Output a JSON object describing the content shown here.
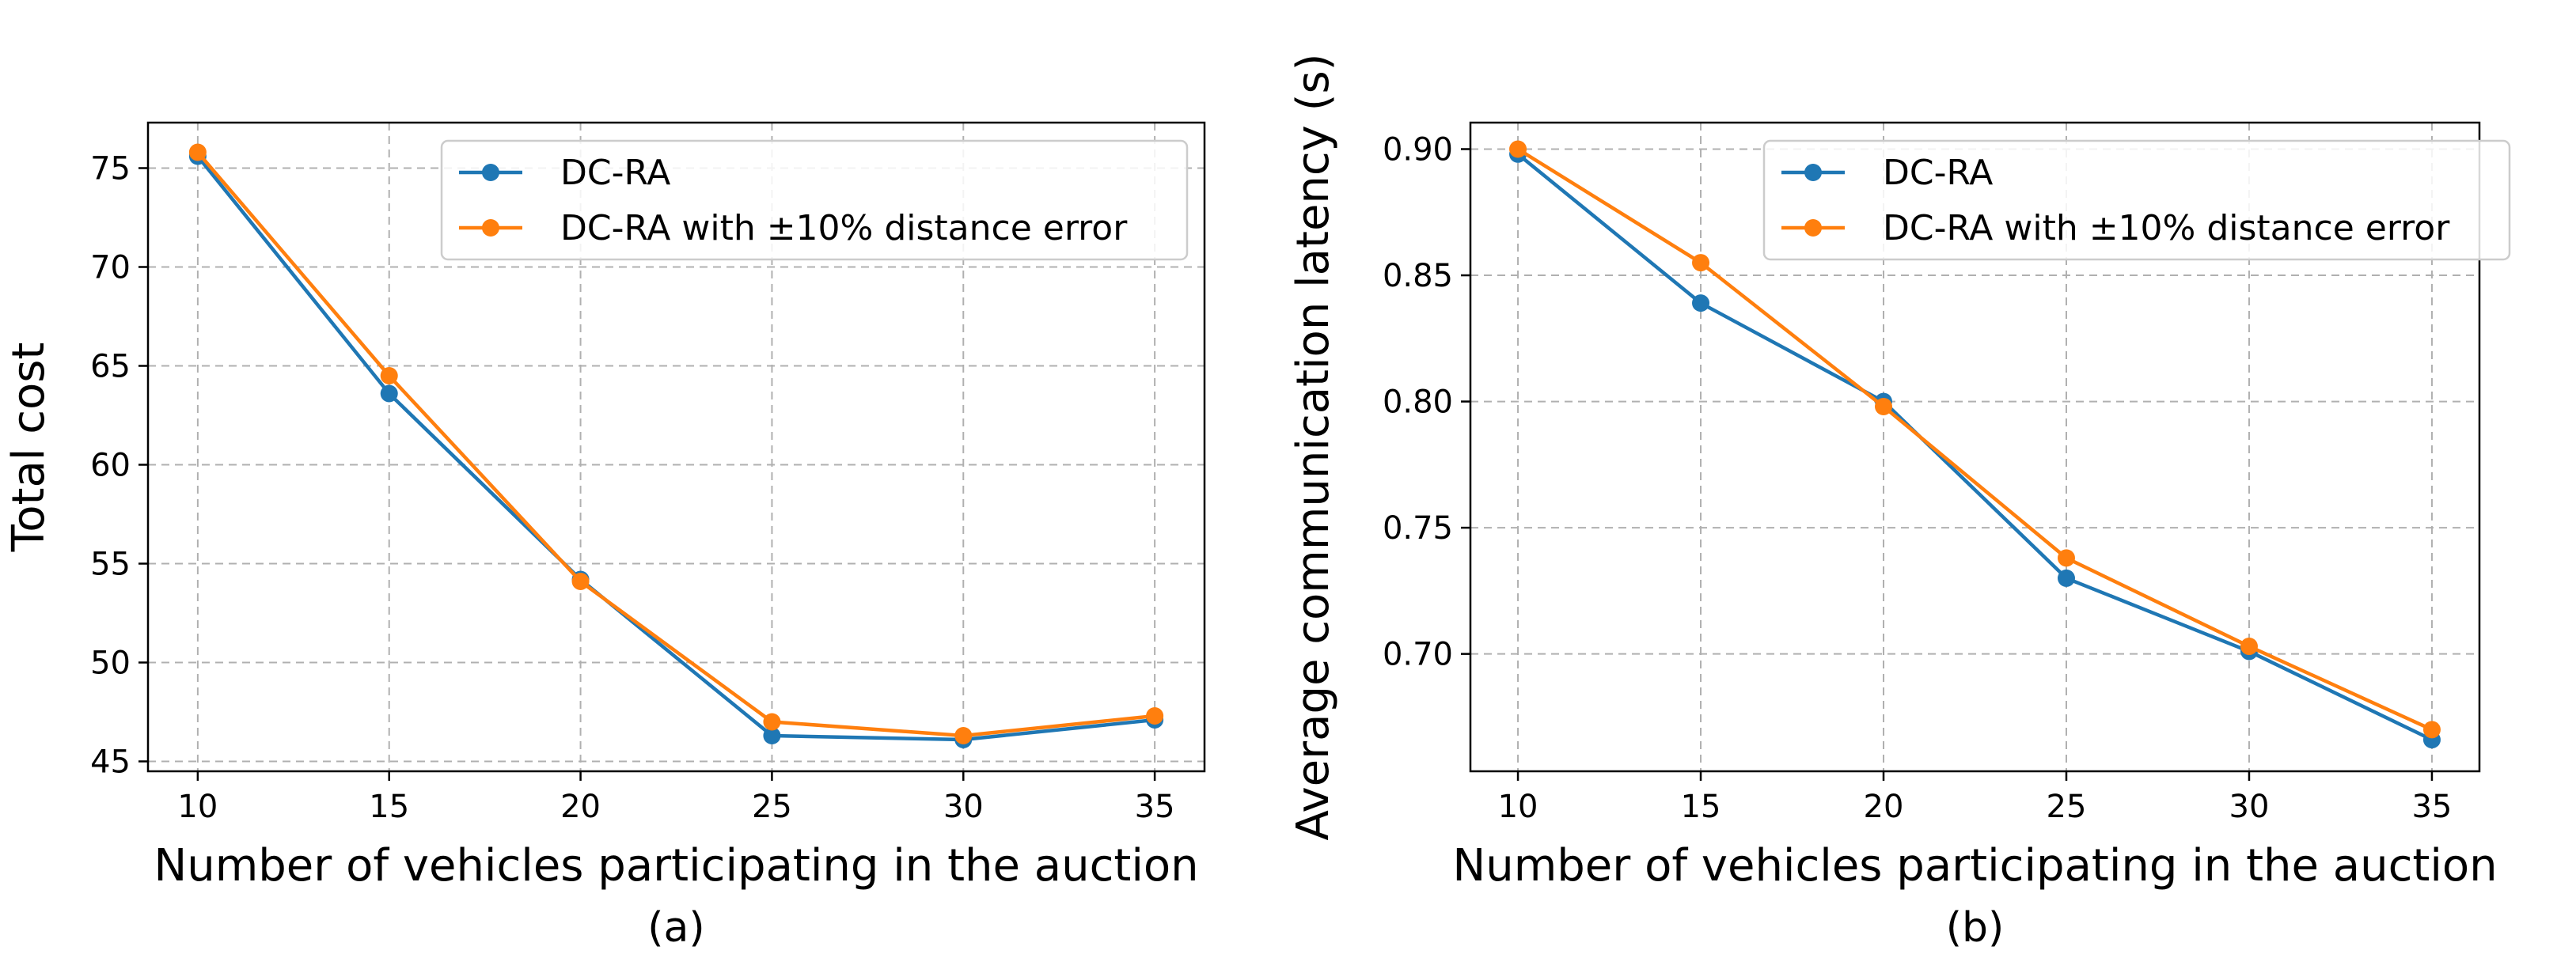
{
  "chart_data": [
    {
      "type": "line",
      "caption": "(a)",
      "xlabel": "Number of vehicles participating in the auction",
      "ylabel": "Total cost",
      "x": [
        10,
        15,
        20,
        25,
        30,
        35
      ],
      "xticks": [
        10,
        15,
        20,
        25,
        30,
        35
      ],
      "yticks": [
        45,
        50,
        55,
        60,
        65,
        70,
        75
      ],
      "xlim": [
        8.7,
        36.3
      ],
      "ylim": [
        44.5,
        77.3
      ],
      "grid": true,
      "legend": "top-right",
      "series": [
        {
          "name": "DC-RA",
          "color": "#1f77b4",
          "values": [
            75.6,
            63.6,
            54.2,
            46.3,
            46.1,
            47.1
          ]
        },
        {
          "name": "DC-RA with ±10% distance error",
          "color": "#ff7f0e",
          "values": [
            75.8,
            64.5,
            54.1,
            47.0,
            46.3,
            47.3
          ]
        }
      ]
    },
    {
      "type": "line",
      "caption": "(b)",
      "xlabel": "Number of vehicles participating in the auction",
      "ylabel": "Average communication latency (s)",
      "x": [
        10,
        15,
        20,
        25,
        30,
        35
      ],
      "xticks": [
        10,
        15,
        20,
        25,
        30,
        35
      ],
      "yticks": [
        0.7,
        0.75,
        0.8,
        0.85,
        0.9
      ],
      "xlim": [
        8.7,
        36.3
      ],
      "ylim": [
        0.6535,
        0.9105
      ],
      "grid": true,
      "legend": "top-right",
      "series": [
        {
          "name": "DC-RA",
          "color": "#1f77b4",
          "values": [
            0.898,
            0.839,
            0.8,
            0.73,
            0.701,
            0.666
          ]
        },
        {
          "name": "DC-RA with ±10% distance error",
          "color": "#ff7f0e",
          "values": [
            0.9,
            0.855,
            0.798,
            0.738,
            0.703,
            0.67
          ]
        }
      ]
    }
  ]
}
